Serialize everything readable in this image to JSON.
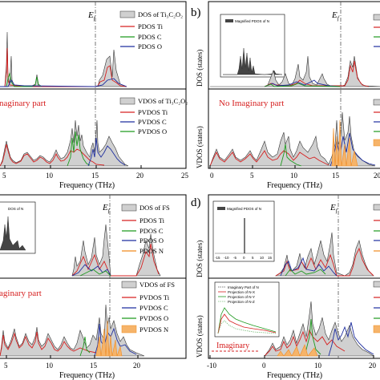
{
  "colors": {
    "total": "#333333",
    "total_fill": "#d0d0d0",
    "ti": "#d62020",
    "c": "#1f9a1f",
    "o": "#1f2f9f",
    "n": "#f08a1f",
    "n_fill": "#f6b46a",
    "imag": "#d62020",
    "dashline": "#555555"
  },
  "panels": {
    "a": {
      "letter": "",
      "ef": "E",
      "ef_sub": "f",
      "dos_legend": [
        "DOS of Ti₃C₂O₂",
        "PDOS Ti",
        "PDOS C",
        "PDOS O"
      ],
      "vdos_legend": [
        "VDOS of Ti₃C₂O₂",
        "PVDOS Ti",
        "PVDOS C",
        "PVDOS O"
      ],
      "imag_text": "naginary part",
      "xlabel": "Frequency (THz)",
      "xticks": [
        "5",
        "10",
        "15",
        "20",
        "25"
      ]
    },
    "b": {
      "letter": "b)",
      "ef": "E",
      "ef_sub": "f",
      "ylabel_top": "DOS (states)",
      "ylabel_bottom": "VDOS (states)",
      "inset_title": "Magnified PDOS of N",
      "imag_text": "No Imaginary part",
      "xlabel": "Frequency (THz)",
      "xticks": [
        "0",
        "5",
        "10",
        "15",
        "20"
      ]
    },
    "c": {
      "letter": "",
      "ef": "E",
      "ef_sub": "f",
      "inset_title": "DOS of N",
      "dos_legend": [
        "DOS of FS",
        "PDOS Ti",
        "PDOS C",
        "PDOS O",
        "PDOS N"
      ],
      "vdos_legend": [
        "VDOS of FS",
        "PVDOS Ti",
        "PVDOS C",
        "PVDOS O",
        "PVDOS N"
      ],
      "imag_text": "aginary part",
      "xlabel": "Frequency (THz)",
      "xticks": [
        "5",
        "10",
        "15",
        "20"
      ]
    },
    "d": {
      "letter": "d)",
      "ef": "E",
      "ef_sub": "f",
      "ylabel_top": "DOS (states)",
      "ylabel_bottom": "VDOS (states)",
      "inset_title": "Magnified PDOS of N",
      "inset_xticks": [
        "-15",
        "-10",
        "-5",
        "0",
        "5",
        "10",
        "15"
      ],
      "vinset_legend": [
        "Imaginary Part of N",
        "Projection of N-X",
        "Projection of N-Y",
        "Projection of N-Z"
      ],
      "imag_text": "Imaginary",
      "xlabel": "Frequency (THz)",
      "xticks": [
        "-10",
        "0",
        "10",
        "20"
      ]
    }
  }
}
